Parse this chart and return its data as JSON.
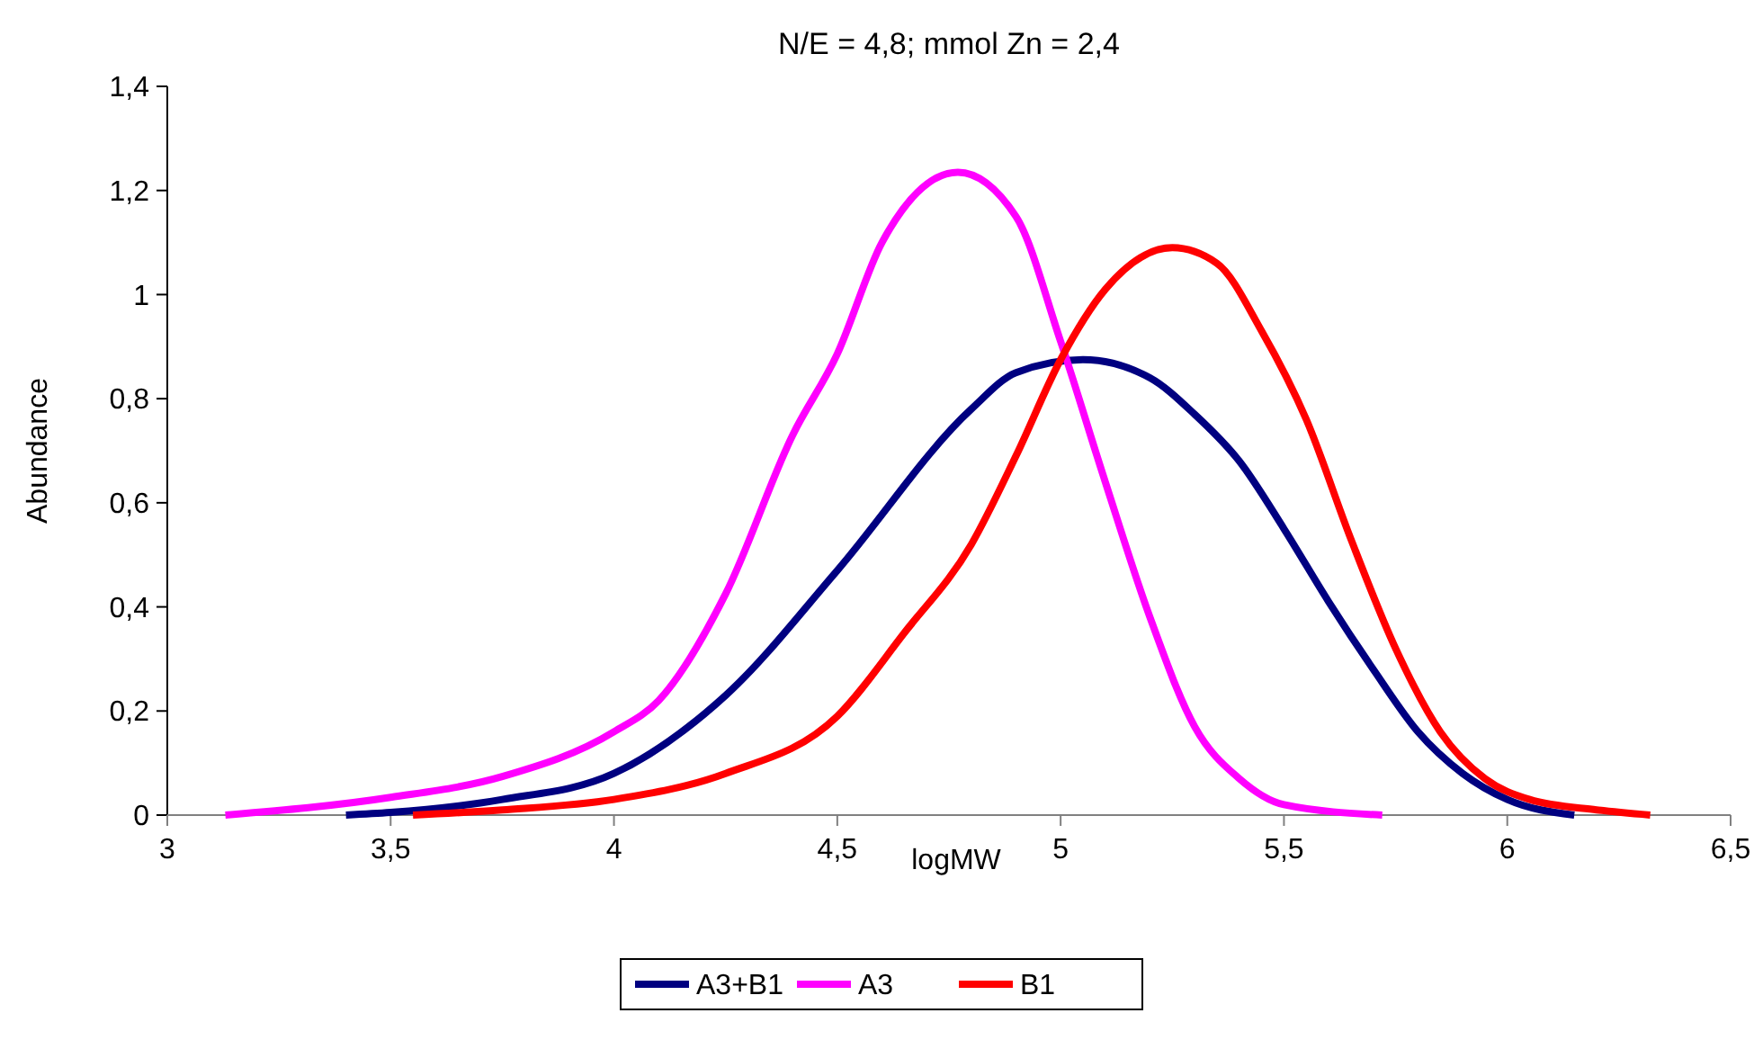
{
  "chart_data": {
    "type": "line",
    "title": "N/E = 4,8; mmol Zn = 2,4",
    "xlabel": "logMW",
    "ylabel": "Abundance",
    "xlim": [
      3,
      6.5
    ],
    "xticks": [
      3,
      {
        "value": 3.5,
        "label": "3,5"
      },
      4,
      {
        "value": 4.5,
        "label": "4,5"
      },
      5,
      {
        "value": 5.5,
        "label": "5,5"
      },
      6,
      {
        "value": 6.5,
        "label": "6,5"
      }
    ],
    "ylim": [
      0,
      1.4
    ],
    "yticks": [
      0,
      {
        "value": 0.2,
        "label": "0,2"
      },
      {
        "value": 0.4,
        "label": "0,4"
      },
      {
        "value": 0.6,
        "label": "0,6"
      },
      {
        "value": 0.8,
        "label": "0,8"
      },
      1,
      {
        "value": 1.2,
        "label": "1,2"
      },
      {
        "value": 1.4,
        "label": "1,4"
      }
    ],
    "grid": false,
    "legend": "bottom",
    "marker": "none",
    "line_style": "solid",
    "series": [
      {
        "name": "A3+B1",
        "color": "#000080",
        "x": [
          3.4,
          3.5,
          3.75,
          4.0,
          4.25,
          4.5,
          4.8,
          4.9,
          5.05,
          5.2,
          5.3,
          5.4,
          5.5,
          5.6,
          5.7,
          5.8,
          5.9,
          6.0,
          6.15
        ],
        "values": [
          0,
          0.005,
          0.03,
          0.08,
          0.23,
          0.47,
          0.78,
          0.85,
          0.875,
          0.84,
          0.77,
          0.68,
          0.55,
          0.41,
          0.28,
          0.16,
          0.08,
          0.03,
          0
        ]
      },
      {
        "name": "A3",
        "color": "#ff00ff",
        "x": [
          3.13,
          3.5,
          3.75,
          4.0,
          4.1,
          4.25,
          4.4,
          4.5,
          4.6,
          4.77,
          4.9,
          5.0,
          5.1,
          5.2,
          5.3,
          5.4,
          5.5,
          5.72
        ],
        "values": [
          0,
          0.034,
          0.074,
          0.16,
          0.22,
          0.425,
          0.73,
          0.886,
          1.1,
          1.235,
          1.15,
          0.91,
          0.64,
          0.38,
          0.17,
          0.07,
          0.02,
          0
        ]
      },
      {
        "name": "B1",
        "color": "#ff0000",
        "x": [
          3.55,
          3.75,
          4.0,
          4.25,
          4.5,
          4.65,
          4.8,
          4.9,
          5.0,
          5.1,
          5.25,
          5.35,
          5.45,
          5.55,
          5.65,
          5.75,
          5.85,
          5.95,
          6.05,
          6.2,
          6.32
        ],
        "values": [
          0,
          0.01,
          0.03,
          0.08,
          0.19,
          0.35,
          0.52,
          0.69,
          0.875,
          1.01,
          1.09,
          1.06,
          0.93,
          0.76,
          0.53,
          0.32,
          0.16,
          0.07,
          0.03,
          0.01,
          0
        ]
      }
    ]
  }
}
